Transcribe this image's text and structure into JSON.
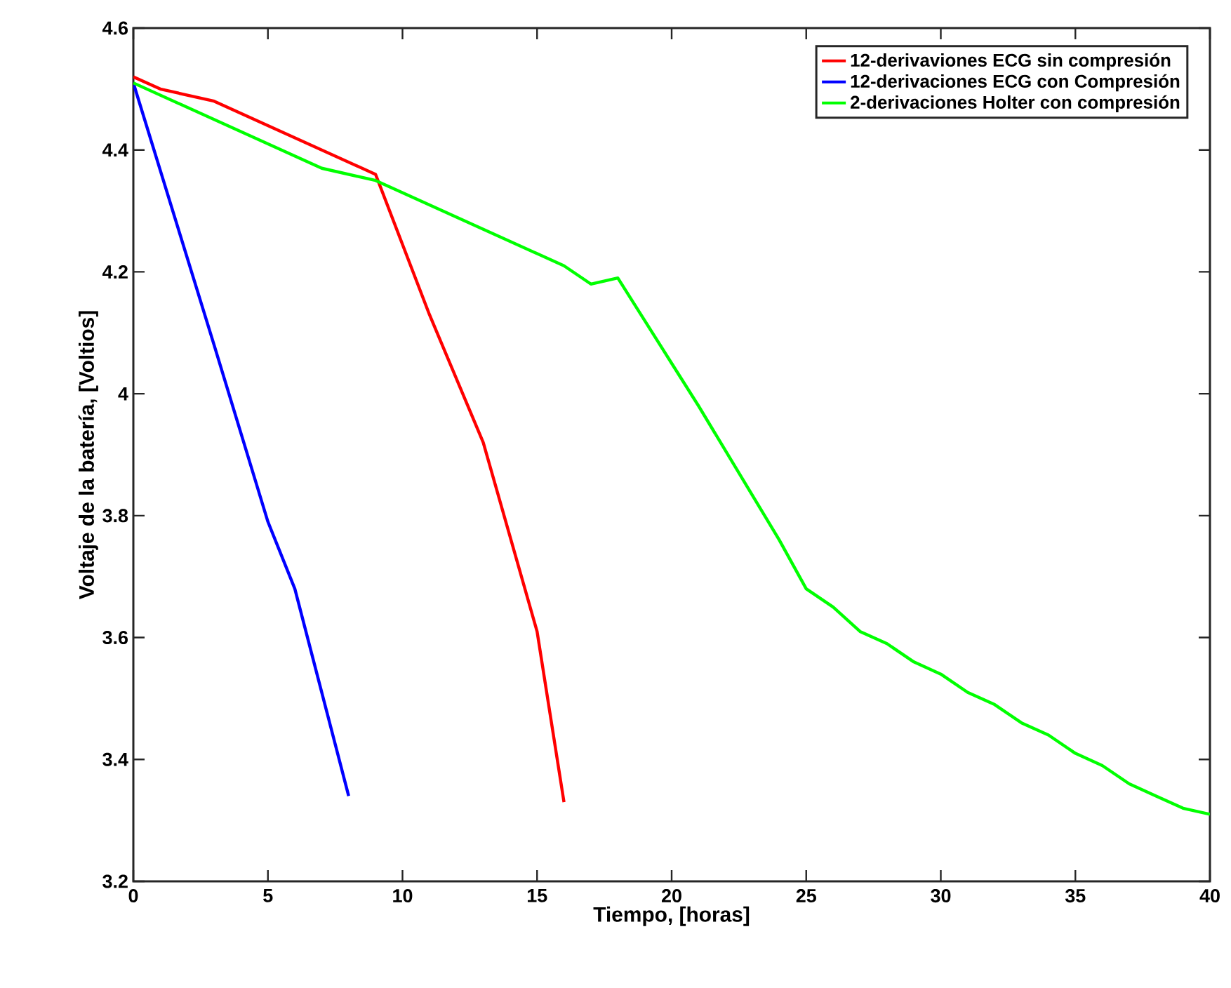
{
  "chart_data": {
    "type": "line",
    "xlabel": "Tiempo, [horas]",
    "ylabel": "Voltaje de la batería, [Voltios]",
    "xlim": [
      0,
      40
    ],
    "ylim": [
      3.2,
      4.6
    ],
    "xticks": [
      0,
      5,
      10,
      15,
      20,
      25,
      30,
      35,
      40
    ],
    "yticks": [
      3.2,
      3.4,
      3.6,
      3.8,
      4,
      4.2,
      4.4,
      4.6
    ],
    "legend": "top right",
    "series": [
      {
        "name": "12-derivaviones ECG sin compresión",
        "color": "#ff0000",
        "x": [
          0,
          1,
          3,
          9,
          11,
          13,
          15,
          16
        ],
        "values": [
          4.52,
          4.5,
          4.48,
          4.36,
          4.13,
          3.92,
          3.61,
          3.33
        ]
      },
      {
        "name": "12-derivaciones ECG con Compresión",
        "color": "#0000ff",
        "x": [
          0,
          3,
          5,
          6,
          8
        ],
        "values": [
          4.51,
          4.08,
          3.79,
          3.68,
          3.34
        ]
      },
      {
        "name": "2-derivaciones Holter con compresión",
        "color": "#00ff00",
        "x": [
          0,
          7,
          9,
          16,
          17,
          18,
          20,
          21,
          24,
          25,
          26,
          27,
          28,
          29,
          30,
          31,
          32,
          33,
          34,
          35,
          36,
          37,
          38,
          39,
          40
        ],
        "values": [
          4.51,
          4.37,
          4.35,
          4.21,
          4.18,
          4.19,
          4.05,
          3.98,
          3.76,
          3.68,
          3.65,
          3.61,
          3.59,
          3.56,
          3.54,
          3.51,
          3.49,
          3.46,
          3.44,
          3.41,
          3.39,
          3.36,
          3.34,
          3.32,
          3.31
        ]
      }
    ]
  }
}
